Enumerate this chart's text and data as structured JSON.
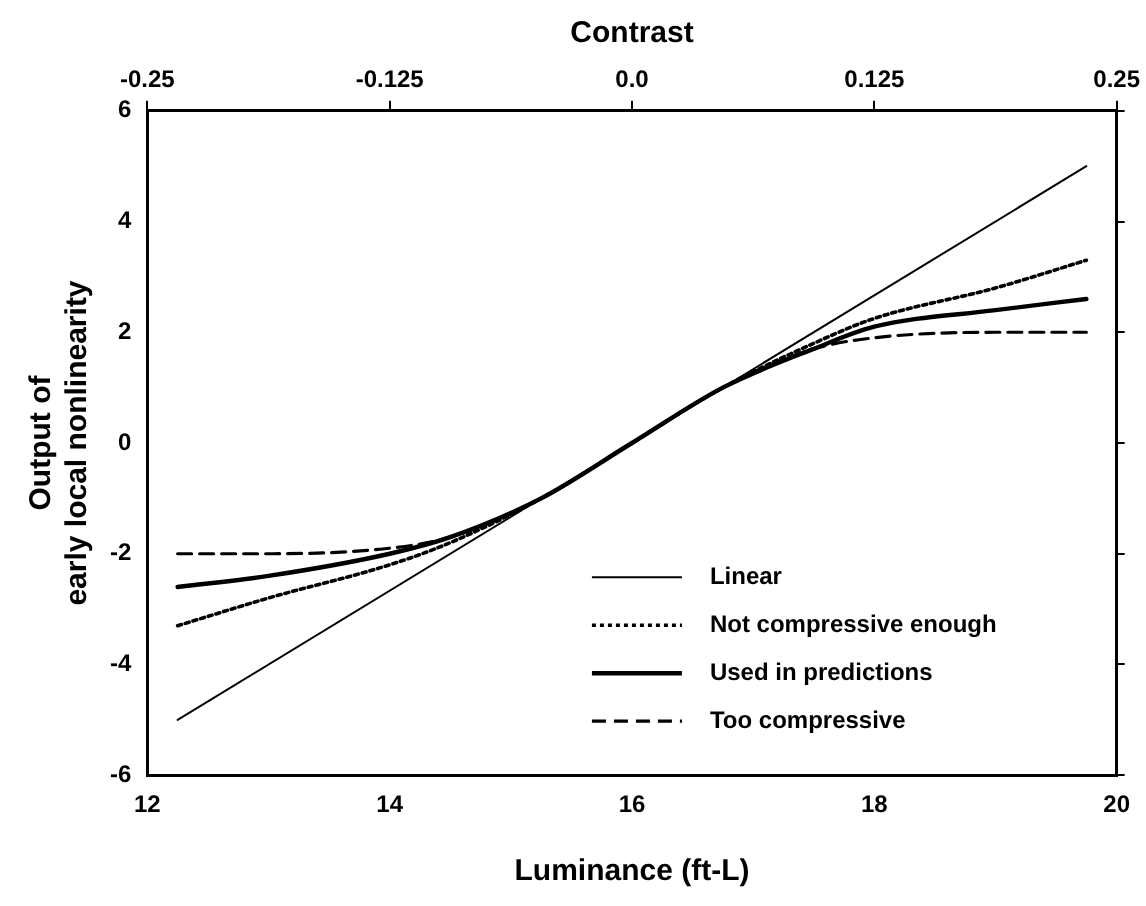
{
  "chart_data": {
    "type": "line",
    "xlabel": "Luminance (ft-L)",
    "ylabel": "Output of\nearly local nonlinearity",
    "x2label": "Contrast",
    "xlim": [
      12,
      20
    ],
    "xticks": [
      12,
      14,
      16,
      18,
      20
    ],
    "ylim": [
      -6,
      6
    ],
    "yticks": [
      -6,
      -4,
      -2,
      0,
      2,
      4,
      6
    ],
    "x2lim": [
      -0.25,
      0.25
    ],
    "x2ticks": [
      -0.25,
      -0.125,
      {
        "value": 0,
        "label": "0.0"
      },
      0.125,
      0.25
    ],
    "grid": false,
    "legend": "bottom right",
    "marker": "none",
    "series": [
      {
        "name": "Linear",
        "color": "#000000",
        "line_style": "solid",
        "x": [
          12.25,
          16,
          19.75
        ],
        "values": [
          -5,
          0,
          5
        ]
      },
      {
        "name": "Not compressive enough",
        "color": "#000000",
        "line_style": "dotted",
        "x": [
          12.25,
          13,
          14,
          14.5,
          15.25,
          16,
          16.75,
          17.5,
          18,
          19,
          19.75
        ],
        "values": [
          -3.3,
          -2.8,
          -2.2,
          -1.8,
          -1,
          0,
          1,
          1.8,
          2.25,
          2.8,
          3.3
        ]
      },
      {
        "name": "Used in predictions",
        "color": "#000000",
        "line_style": "solid",
        "x": [
          12.25,
          13,
          14,
          14.5,
          15.25,
          16,
          16.75,
          17.5,
          18,
          19,
          19.75
        ],
        "values": [
          -2.6,
          -2.4,
          -2.0,
          -1.7,
          -1,
          0,
          1,
          1.7,
          2.1,
          2.4,
          2.6
        ]
      },
      {
        "name": "Too compressive",
        "color": "#000000",
        "line_style": "dashed",
        "x": [
          12.25,
          13,
          14,
          14.5,
          15.25,
          16,
          16.75,
          17.5,
          18,
          19,
          19.75
        ],
        "values": [
          -2,
          -2,
          -1.9,
          -1.7,
          -1,
          0,
          1,
          1.7,
          1.9,
          2.0,
          2.0
        ]
      }
    ]
  }
}
